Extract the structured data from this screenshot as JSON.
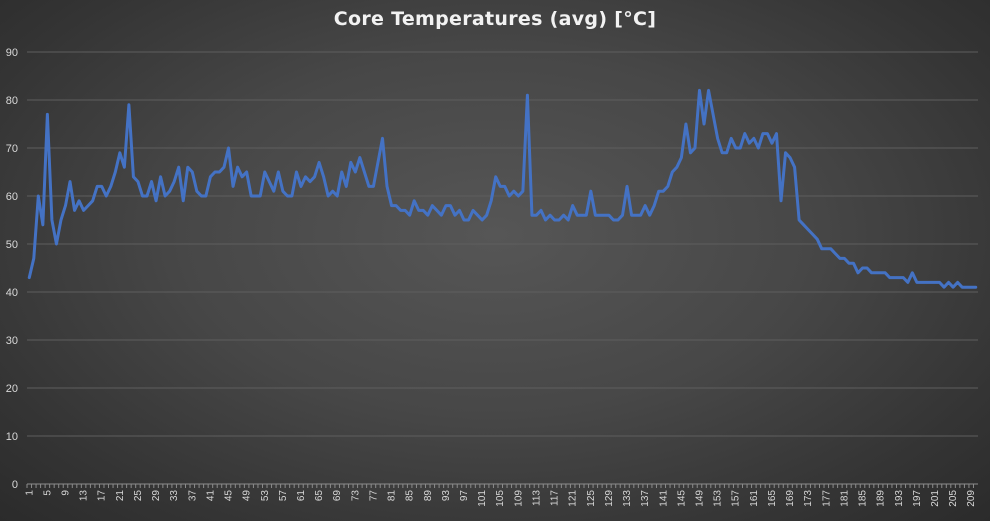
{
  "chart_data": {
    "type": "line",
    "title": "Core Temperatures (avg) [°C]",
    "xlabel": "",
    "ylabel": "",
    "ylim": [
      0,
      90
    ],
    "yticks": [
      0,
      10,
      20,
      30,
      40,
      50,
      60,
      70,
      80,
      90
    ],
    "x_tick_labels": [
      "1",
      "5",
      "9",
      "13",
      "17",
      "21",
      "25",
      "29",
      "33",
      "37",
      "41",
      "45",
      "49",
      "53",
      "57",
      "61",
      "65",
      "69",
      "73",
      "77",
      "81",
      "85",
      "89",
      "93",
      "97",
      "101",
      "105",
      "109",
      "113",
      "117",
      "121",
      "125",
      "129",
      "133",
      "137",
      "141",
      "145",
      "149",
      "153",
      "157",
      "161",
      "165",
      "169",
      "173",
      "177",
      "181",
      "185",
      "189",
      "193",
      "197",
      "201",
      "205",
      "209"
    ],
    "grid": true,
    "legend": "none",
    "series": [
      {
        "color": "#4472c4",
        "x": [
          1,
          2,
          3,
          4,
          5,
          6,
          7,
          8,
          9,
          10,
          11,
          12,
          13,
          14,
          15,
          16,
          17,
          18,
          19,
          20,
          21,
          22,
          23,
          24,
          25,
          26,
          27,
          28,
          29,
          30,
          31,
          32,
          33,
          34,
          35,
          36,
          37,
          38,
          39,
          40,
          41,
          42,
          43,
          44,
          45,
          46,
          47,
          48,
          49,
          50,
          51,
          52,
          53,
          54,
          55,
          56,
          57,
          58,
          59,
          60,
          61,
          62,
          63,
          64,
          65,
          66,
          67,
          68,
          69,
          70,
          71,
          72,
          73,
          74,
          75,
          76,
          77,
          78,
          79,
          80,
          81,
          82,
          83,
          84,
          85,
          86,
          87,
          88,
          89,
          90,
          91,
          92,
          93,
          94,
          95,
          96,
          97,
          98,
          99,
          100,
          101,
          102,
          103,
          104,
          105,
          106,
          107,
          108,
          109,
          110,
          111,
          112,
          113,
          114,
          115,
          116,
          117,
          118,
          119,
          120,
          121,
          122,
          123,
          124,
          125,
          126,
          127,
          128,
          129,
          130,
          131,
          132,
          133,
          134,
          135,
          136,
          137,
          138,
          139,
          140,
          141,
          142,
          143,
          144,
          145,
          146,
          147,
          148,
          149,
          150,
          151,
          152,
          153,
          154,
          155,
          156,
          157,
          158,
          159,
          160,
          161,
          162,
          163,
          164,
          165,
          166,
          167,
          168,
          169,
          170,
          171,
          172,
          173,
          174,
          175,
          176,
          177,
          178,
          179,
          180,
          181,
          182,
          183,
          184,
          185,
          186,
          187,
          188,
          189,
          190,
          191,
          192,
          193,
          194,
          195,
          196,
          197,
          198,
          199,
          200,
          201,
          202,
          203,
          204,
          205,
          206,
          207,
          208,
          209,
          210
        ],
        "values": [
          43,
          47,
          60,
          54,
          77,
          55,
          50,
          55,
          58,
          63,
          57,
          59,
          57,
          58,
          59,
          62,
          62,
          60,
          62,
          65,
          69,
          66,
          79,
          64,
          63,
          60,
          60,
          63,
          59,
          64,
          60,
          61,
          63,
          66,
          59,
          66,
          65,
          61,
          60,
          60,
          64,
          65,
          65,
          66,
          70,
          62,
          66,
          64,
          65,
          60,
          60,
          60,
          65,
          63,
          61,
          65,
          61,
          60,
          60,
          65,
          62,
          64,
          63,
          64,
          67,
          64,
          60,
          61,
          60,
          65,
          62,
          67,
          65,
          68,
          65,
          62,
          62,
          67,
          72,
          62,
          58,
          58,
          57,
          57,
          56,
          59,
          57,
          57,
          56,
          58,
          57,
          56,
          58,
          58,
          56,
          57,
          55,
          55,
          57,
          56,
          55,
          56,
          59,
          64,
          62,
          62,
          60,
          61,
          60,
          61,
          81,
          56,
          56,
          57,
          55,
          56,
          55,
          55,
          56,
          55,
          58,
          56,
          56,
          56,
          61,
          56,
          56,
          56,
          56,
          55,
          55,
          56,
          62,
          56,
          56,
          56,
          58,
          56,
          58,
          61,
          61,
          62,
          65,
          66,
          68,
          75,
          69,
          70,
          82,
          75,
          82,
          77,
          72,
          69,
          69,
          72,
          70,
          70,
          73,
          71,
          72,
          70,
          73,
          73,
          71,
          73,
          59,
          69,
          68,
          66,
          55,
          54,
          53,
          52,
          51,
          49,
          49,
          49,
          48,
          47,
          47,
          46,
          46,
          44,
          45,
          45,
          44,
          44,
          44,
          44,
          43,
          43,
          43,
          43,
          42,
          44,
          42,
          42,
          42,
          42,
          42,
          42,
          41,
          42,
          41,
          42,
          41,
          41,
          41,
          41
        ]
      }
    ]
  }
}
